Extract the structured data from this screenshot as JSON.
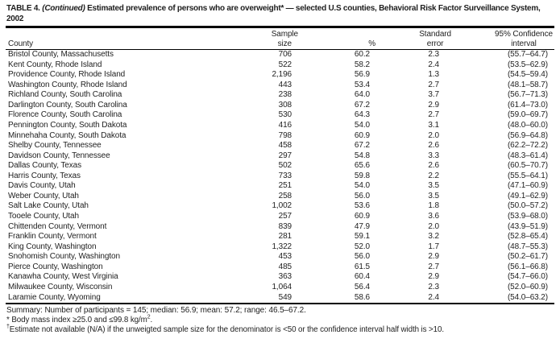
{
  "title": {
    "prefix": "TABLE 4. ",
    "continued": "(Continued)",
    "rest": " Estimated prevalence of persons who are overweight* — selected U.S counties, Behavioral Risk Factor Surveillance System, 2002"
  },
  "columns": {
    "county": "County",
    "sample_line1": "Sample",
    "sample_line2": "size",
    "percent": "%",
    "se_line1": "Standard",
    "se_line2": "error",
    "ci_line1": "95% Confidence",
    "ci_line2": "interval"
  },
  "rows": [
    {
      "county": "Bristol County, Massachusetts",
      "sample": "706",
      "pct": "60.2",
      "se": "2.3",
      "ci": "(55.7–64.7)"
    },
    {
      "county": "Kent County, Rhode Island",
      "sample": "522",
      "pct": "58.2",
      "se": "2.4",
      "ci": "(53.5–62.9)"
    },
    {
      "county": "Providence County, Rhode Island",
      "sample": "2,196",
      "pct": "56.9",
      "se": "1.3",
      "ci": "(54.5–59.4)"
    },
    {
      "county": "Washington County, Rhode Island",
      "sample": "443",
      "pct": "53.4",
      "se": "2.7",
      "ci": "(48.1–58.7)"
    },
    {
      "county": "Richland County, South Carolina",
      "sample": "238",
      "pct": "64.0",
      "se": "3.7",
      "ci": "(56.7–71.3)"
    },
    {
      "county": "Darlington County, South Carolina",
      "sample": "308",
      "pct": "67.2",
      "se": "2.9",
      "ci": "(61.4–73.0)"
    },
    {
      "county": "Florence County, South Carolina",
      "sample": "530",
      "pct": "64.3",
      "se": "2.7",
      "ci": "(59.0–69.7)"
    },
    {
      "county": "Pennington County, South Dakota",
      "sample": "416",
      "pct": "54.0",
      "se": "3.1",
      "ci": "(48.0–60.0)"
    },
    {
      "county": "Minnehaha County, South Dakota",
      "sample": "798",
      "pct": "60.9",
      "se": "2.0",
      "ci": "(56.9–64.8)"
    },
    {
      "county": "Shelby County, Tennessee",
      "sample": "458",
      "pct": "67.2",
      "se": "2.6",
      "ci": "(62.2–72.2)"
    },
    {
      "county": "Davidson County, Tennessee",
      "sample": "297",
      "pct": "54.8",
      "se": "3.3",
      "ci": "(48.3–61.4)"
    },
    {
      "county": "Dallas County, Texas",
      "sample": "502",
      "pct": "65.6",
      "se": "2.6",
      "ci": "(60.5–70.7)"
    },
    {
      "county": "Harris County, Texas",
      "sample": "733",
      "pct": "59.8",
      "se": "2.2",
      "ci": "(55.5–64.1)"
    },
    {
      "county": "Davis County, Utah",
      "sample": "251",
      "pct": "54.0",
      "se": "3.5",
      "ci": "(47.1–60.9)"
    },
    {
      "county": "Weber County, Utah",
      "sample": "258",
      "pct": "56.0",
      "se": "3.5",
      "ci": "(49.1–62.9)"
    },
    {
      "county": "Salt Lake County, Utah",
      "sample": "1,002",
      "pct": "53.6",
      "se": "1.8",
      "ci": "(50.0–57.2)"
    },
    {
      "county": "Tooele County, Utah",
      "sample": "257",
      "pct": "60.9",
      "se": "3.6",
      "ci": "(53.9–68.0)"
    },
    {
      "county": "Chittenden County, Vermont",
      "sample": "839",
      "pct": "47.9",
      "se": "2.0",
      "ci": "(43.9–51.9)"
    },
    {
      "county": "Franklin County, Vermont",
      "sample": "281",
      "pct": "59.1",
      "se": "3.2",
      "ci": "(52.8–65.4)"
    },
    {
      "county": "King County, Washington",
      "sample": "1,322",
      "pct": "52.0",
      "se": "1.7",
      "ci": "(48.7–55.3)"
    },
    {
      "county": "Snohomish County, Washington",
      "sample": "453",
      "pct": "56.0",
      "se": "2.9",
      "ci": "(50.2–61.7)"
    },
    {
      "county": "Pierce County, Washington",
      "sample": "485",
      "pct": "61.5",
      "se": "2.7",
      "ci": "(56.1–66.8)"
    },
    {
      "county": "Kanawha County, West Virginia",
      "sample": "363",
      "pct": "60.4",
      "se": "2.9",
      "ci": "(54.7–66.0)"
    },
    {
      "county": "Milwaukee County, Wisconsin",
      "sample": "1,064",
      "pct": "56.4",
      "se": "2.3",
      "ci": "(52.0–60.9)"
    },
    {
      "county": "Laramie County, Wyoming",
      "sample": "549",
      "pct": "58.6",
      "se": "2.4",
      "ci": "(54.0–63.2)"
    }
  ],
  "summary": "Summary: Number of participants = 145; median: 56.9; mean: 57.2; range: 46.5–67.2.",
  "footnote_asterisk": {
    "marker": "*",
    "text_before_sup": " Body mass index ≥25.0 and ≤99.8 kg/m",
    "sup": "2",
    "text_after_sup": "."
  },
  "footnote_dagger": {
    "marker": "†",
    "text": "Estimate not available (N/A) if the unweigted sample size for the denominator is <50 or the confidence interval half width is >10."
  }
}
